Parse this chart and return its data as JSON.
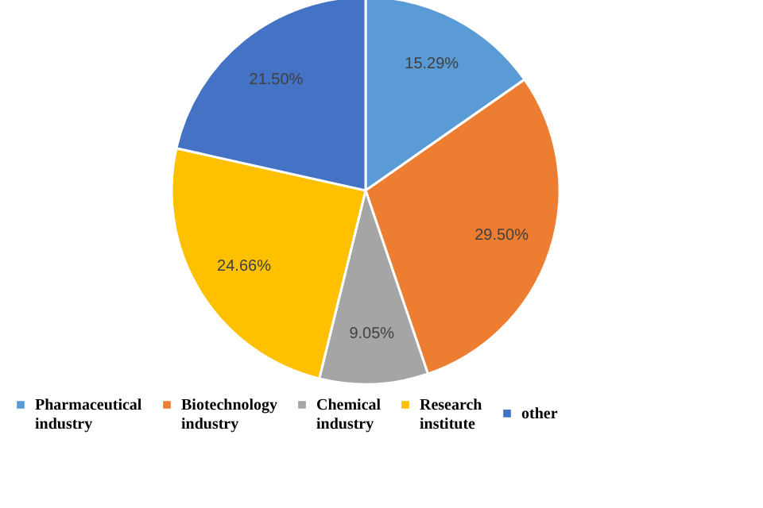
{
  "chart_data": {
    "type": "pie",
    "categories": [
      "Pharmaceutical industry",
      "Biotechnology industry",
      "Chemical industry",
      "Research institute",
      "other"
    ],
    "values": [
      15.29,
      29.5,
      9.05,
      24.66,
      21.5
    ],
    "value_labels": [
      "15.29%",
      "29.50%",
      "9.05%",
      "24.66%",
      "21.50%"
    ],
    "colors": [
      "#5b9bd5",
      "#ed7d31",
      "#a5a5a5",
      "#ffc000",
      "#4472c4"
    ],
    "legend": "bottom"
  }
}
